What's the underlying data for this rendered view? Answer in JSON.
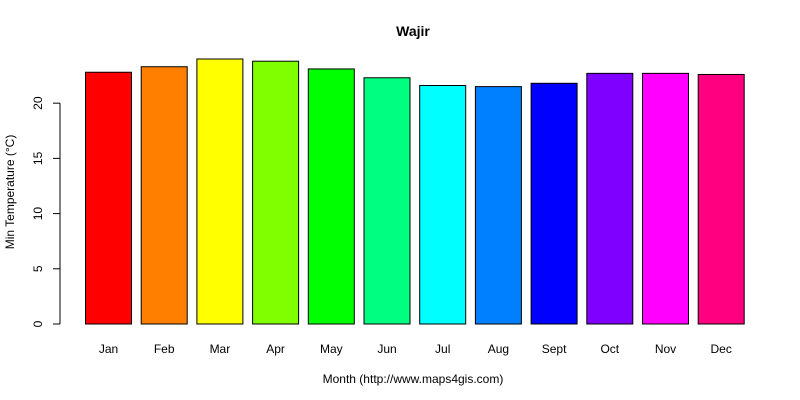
{
  "chart_data": {
    "type": "bar",
    "title": "Wajir",
    "xlabel": "Month (http://www.maps4gis.com)",
    "ylabel": "Min Temperature (°C)",
    "categories": [
      "Jan",
      "Feb",
      "Mar",
      "Apr",
      "May",
      "Jun",
      "Jul",
      "Aug",
      "Sept",
      "Oct",
      "Nov",
      "Dec"
    ],
    "values": [
      22.8,
      23.3,
      24.0,
      23.8,
      23.1,
      22.3,
      21.6,
      21.5,
      21.8,
      22.7,
      22.7,
      22.6
    ],
    "colors": [
      "#FF0000",
      "#FF8000",
      "#FFFF00",
      "#80FF00",
      "#00FF00",
      "#00FF80",
      "#00FFFF",
      "#0080FF",
      "#0000FF",
      "#8000FF",
      "#FF00FF",
      "#FF0080"
    ],
    "yticks": [
      0,
      5,
      10,
      15,
      20
    ],
    "ylim": [
      0,
      24.0
    ],
    "grid": false,
    "legend": "none"
  }
}
